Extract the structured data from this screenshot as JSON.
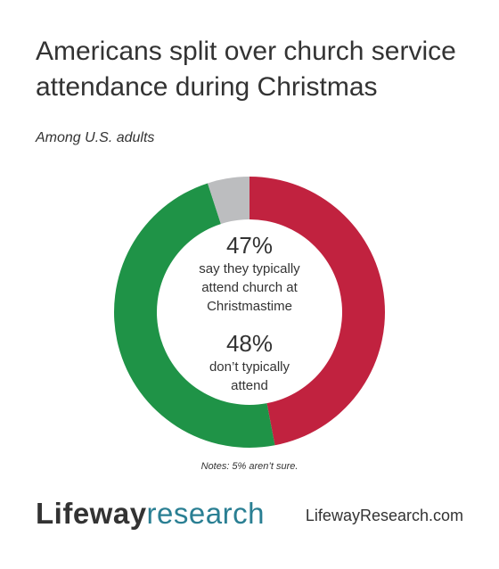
{
  "header": {
    "title": "Americans split over church service attendance during Christmas",
    "subtitle": "Among U.S. adults"
  },
  "center": {
    "pct_attend": "47%",
    "desc_attend": "say they typically\nattend church at\nChristmastime",
    "pct_not": "48%",
    "desc_not": "don’t typically\nattend"
  },
  "notes": "Notes: 5% aren’t sure.",
  "footer": {
    "logo_part1": "Lifeway",
    "logo_part2": "research",
    "site": "LifewayResearch.com"
  },
  "chart_data": {
    "type": "pie",
    "subtype": "donut",
    "title": "Americans split over church service attendance during Christmas",
    "subtitle": "Among U.S. adults",
    "slices": [
      {
        "label": "say they typically attend church at Christmastime",
        "value": 47,
        "color": "#c1223f"
      },
      {
        "label": "don’t typically attend",
        "value": 48,
        "color": "#1f9347"
      },
      {
        "label": "not sure",
        "value": 5,
        "color": "#bcbdbf"
      }
    ]
  }
}
